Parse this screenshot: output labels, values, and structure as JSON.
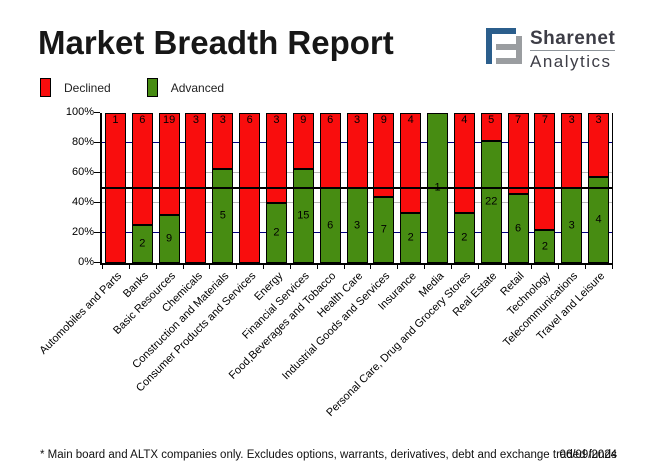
{
  "header": {
    "title": "Market Breadth Report"
  },
  "logo": {
    "name": "Sharenet",
    "subtitle": "Analytics",
    "icon": "sharenet-s-logo",
    "blue": "#2b5e8c",
    "gray": "#9a9da0"
  },
  "legend": {
    "declined": {
      "label": "Declined",
      "color": "#f90d0d"
    },
    "advanced": {
      "label": "Advanced",
      "color": "#478c12"
    }
  },
  "chart_data": {
    "type": "bar",
    "subtype": "stacked-100-percent-column",
    "title": "Market Breadth Report",
    "xlabel": "",
    "ylabel": "",
    "ylim": [
      0,
      100
    ],
    "y_tick_labels": [
      "0%",
      "20%",
      "40%",
      "60%",
      "80%",
      "100%"
    ],
    "legend_position": "top-left",
    "categories": [
      "Automobiles and Parts",
      "Banks",
      "Basic Resources",
      "Chemicals",
      "Construction and Materials",
      "Consumer Products and Services",
      "Energy",
      "Financial Services",
      "Food,Beverages and Tobacco",
      "Health Care",
      "Industrial Goods and Services",
      "Insurance",
      "Media",
      "Personal Care, Drug and Grocery Stores",
      "Real Estate",
      "Retail",
      "Technology",
      "Telecommunications",
      "Travel and Leisure"
    ],
    "series": [
      {
        "name": "Declined",
        "color": "#f90d0d",
        "values": [
          1,
          6,
          19,
          3,
          3,
          6,
          3,
          9,
          6,
          3,
          9,
          4,
          0,
          4,
          5,
          7,
          7,
          3,
          3
        ]
      },
      {
        "name": "Advanced",
        "color": "#478c12",
        "values": [
          0,
          2,
          9,
          0,
          5,
          0,
          2,
          15,
          6,
          3,
          7,
          2,
          1,
          2,
          22,
          6,
          2,
          3,
          4
        ]
      }
    ],
    "gridlines": [
      {
        "percent": 20,
        "color": "#000080",
        "over_bars": false
      },
      {
        "percent": 40,
        "color": "#b8b8b8",
        "over_bars": false
      },
      {
        "percent": 60,
        "color": "#b8b8b8",
        "over_bars": false
      },
      {
        "percent": 80,
        "color": "#000080",
        "over_bars": false
      },
      {
        "percent": 50,
        "color": "#000000",
        "over_bars": true
      }
    ]
  },
  "footer": {
    "note": "* Main board and ALTX companies only. Excludes options, warrants, derivatives, debt and exchange traded funds",
    "date": "06/09/2024"
  }
}
